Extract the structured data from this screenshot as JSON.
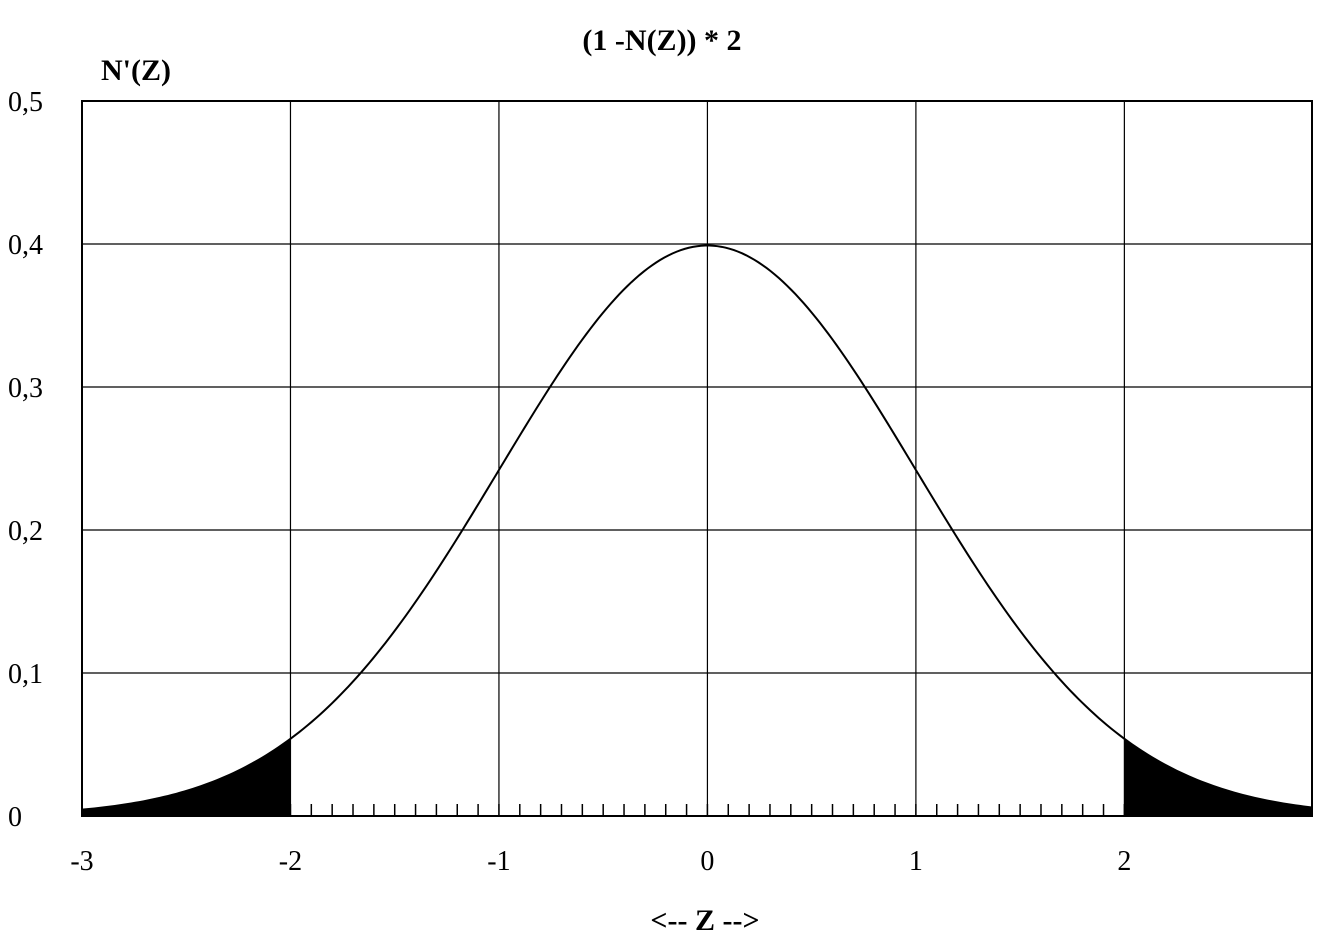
{
  "chart_data": {
    "type": "area",
    "title": "(1 -N(Z)) * 2",
    "ylabel": "N'(Z)",
    "xlabel": "<-- Z -->",
    "xlim": [
      -3,
      2.9
    ],
    "ylim": [
      0,
      0.5
    ],
    "x_ticks": [
      {
        "value": -3,
        "label": "-3"
      },
      {
        "value": -2,
        "label": "-2"
      },
      {
        "value": -1,
        "label": "-1"
      },
      {
        "value": 0,
        "label": "0"
      },
      {
        "value": 1,
        "label": "1"
      },
      {
        "value": 2,
        "label": "2"
      }
    ],
    "y_ticks": [
      {
        "value": 0,
        "label": "0"
      },
      {
        "value": 0.1,
        "label": "0,1"
      },
      {
        "value": 0.2,
        "label": "0,2"
      },
      {
        "value": 0.3,
        "label": "0,3"
      },
      {
        "value": 0.4,
        "label": "0,4"
      },
      {
        "value": 0.5,
        "label": "0,5"
      }
    ],
    "grid": true,
    "minor_tick_step": 0.1,
    "minor_tick_range": [
      -2,
      2
    ],
    "shaded_regions": [
      {
        "from": -3,
        "to": -2
      },
      {
        "from": 2,
        "to": 2.9
      }
    ],
    "series": [
      {
        "curve": "standard normal density",
        "x": [
          -3,
          -2.75,
          -2.5,
          -2.25,
          -2,
          -1.75,
          -1.5,
          -1.25,
          -1,
          -0.75,
          -0.5,
          -0.25,
          0,
          0.25,
          0.5,
          0.75,
          1,
          1.25,
          1.5,
          1.75,
          2,
          2.25,
          2.5,
          2.75,
          2.9
        ],
        "y": [
          0.0044,
          0.0091,
          0.0175,
          0.0317,
          0.054,
          0.0863,
          0.1295,
          0.1826,
          0.242,
          0.3011,
          0.3521,
          0.3867,
          0.3989,
          0.3867,
          0.3521,
          0.3011,
          0.242,
          0.1826,
          0.1295,
          0.0863,
          0.054,
          0.0317,
          0.0175,
          0.0091,
          0.006
        ]
      }
    ],
    "colors": {
      "line": "#000000",
      "fill": "#000000",
      "grid": "#000000",
      "background": "#ffffff"
    }
  }
}
